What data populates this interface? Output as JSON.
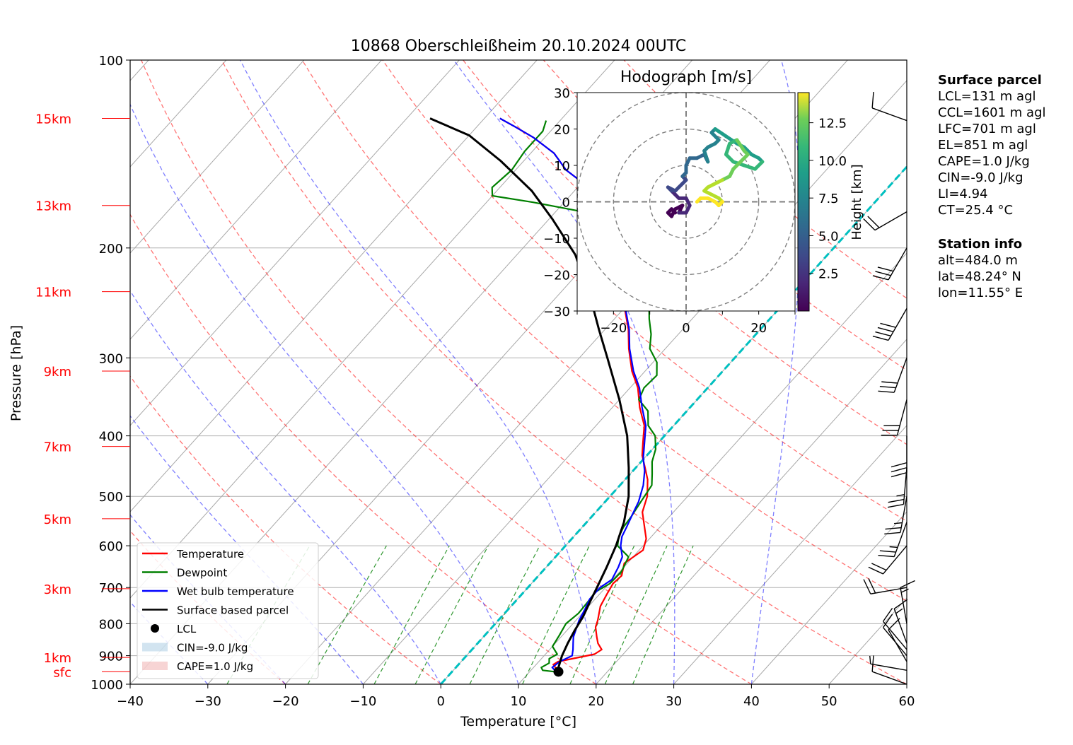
{
  "title": "10868 Oberschleißheim 20.10.2024 00UTC",
  "chart_data": {
    "type": "skew-t log-p sounding",
    "xlabel": "Temperature [°C]",
    "ylabel": "Pressure [hPa]",
    "xlim": [
      -40,
      60
    ],
    "ylim": [
      1000,
      100
    ],
    "y_scale": "log",
    "x_ticks": [
      -40,
      -30,
      -20,
      -10,
      0,
      10,
      20,
      30,
      40,
      50,
      60
    ],
    "x_tick_labels": [
      "−40",
      "−30",
      "−20",
      "−10",
      "0",
      "10",
      "20",
      "30",
      "40",
      "50",
      "60"
    ],
    "y_ticks": [
      1000,
      900,
      800,
      700,
      600,
      500,
      400,
      300,
      200,
      100
    ],
    "grid": true,
    "height_labels": [
      {
        "label": "sfc",
        "pressure": 955
      },
      {
        "label": "1km",
        "pressure": 906
      },
      {
        "label": "3km",
        "pressure": 703
      },
      {
        "label": "5km",
        "pressure": 543
      },
      {
        "label": "7km",
        "pressure": 416
      },
      {
        "label": "9km",
        "pressure": 315
      },
      {
        "label": "11km",
        "pressure": 235
      },
      {
        "label": "13km",
        "pressure": 171
      },
      {
        "label": "15km",
        "pressure": 124
      }
    ],
    "series": [
      {
        "name": "Temperature",
        "color": "#ff0000",
        "points": [
          [
            13.7,
            955
          ],
          [
            12.2,
            930
          ],
          [
            12.5,
            920
          ],
          [
            16.3,
            895
          ],
          [
            16.7,
            880
          ],
          [
            15.5,
            860
          ],
          [
            14.6,
            840
          ],
          [
            13.3,
            810
          ],
          [
            12.8,
            790
          ],
          [
            11.5,
            750
          ],
          [
            10.9,
            715
          ],
          [
            10.5,
            690
          ],
          [
            10.7,
            670
          ],
          [
            9.6,
            640
          ],
          [
            10.5,
            610
          ],
          [
            9.6,
            585
          ],
          [
            8.0,
            560
          ],
          [
            6.0,
            530
          ],
          [
            4.8,
            500
          ],
          [
            2.9,
            470
          ],
          [
            1.2,
            450
          ],
          [
            -0.6,
            430
          ],
          [
            -2.0,
            410
          ],
          [
            -3.8,
            385
          ],
          [
            -6.5,
            360
          ],
          [
            -9.0,
            335
          ],
          [
            -11.7,
            315
          ],
          [
            -14.7,
            290
          ],
          [
            -17.0,
            270
          ],
          [
            -19.6,
            252
          ],
          [
            -22.8,
            235
          ],
          [
            -25.6,
            222
          ],
          [
            -28.5,
            210
          ],
          [
            -31.2,
            198
          ],
          [
            -33.5,
            187
          ],
          [
            -34.5,
            180
          ],
          [
            -36.5,
            168
          ],
          [
            -39.5,
            158
          ],
          [
            -43.5,
            150
          ],
          [
            -47.0,
            141
          ],
          [
            -51.5,
            133
          ],
          [
            -55.0,
            128
          ],
          [
            -58.0,
            124
          ]
        ]
      },
      {
        "name": "Dewpoint",
        "color": "#008000",
        "points": [
          [
            13.2,
            955
          ],
          [
            11.5,
            950
          ],
          [
            11.0,
            940
          ],
          [
            11.5,
            925
          ],
          [
            11.0,
            910
          ],
          [
            11.5,
            895
          ],
          [
            10.0,
            870
          ],
          [
            9.6,
            835
          ],
          [
            9.1,
            800
          ],
          [
            9.5,
            770
          ],
          [
            9.4,
            740
          ],
          [
            9.2,
            712
          ],
          [
            10.1,
            690
          ],
          [
            10.2,
            660
          ],
          [
            9.4,
            625
          ],
          [
            6.7,
            600
          ],
          [
            5.8,
            580
          ],
          [
            5.3,
            560
          ],
          [
            5.1,
            540
          ],
          [
            4.6,
            510
          ],
          [
            4.1,
            480
          ],
          [
            2.8,
            460
          ],
          [
            1.4,
            440
          ],
          [
            0.4,
            420
          ],
          [
            -1.2,
            400
          ],
          [
            -3.3,
            385
          ],
          [
            -5.0,
            365
          ],
          [
            -7.5,
            350
          ],
          [
            -8.2,
            335
          ],
          [
            -8.0,
            320
          ],
          [
            -9.5,
            305
          ],
          [
            -12.0,
            290
          ],
          [
            -13.5,
            275
          ],
          [
            -15.5,
            260
          ],
          [
            -17.4,
            245
          ],
          [
            -19.7,
            232
          ],
          [
            -23.0,
            220
          ],
          [
            -25.7,
            208
          ],
          [
            -26.8,
            198
          ],
          [
            -28.5,
            190
          ],
          [
            -32.5,
            182
          ],
          [
            -36.5,
            175
          ],
          [
            -44.0,
            169
          ],
          [
            -50.0,
            165
          ],
          [
            -51.0,
            160
          ],
          [
            -50.5,
            150
          ],
          [
            -51.0,
            140
          ],
          [
            -51.0,
            130
          ],
          [
            -51.8,
            125
          ]
        ]
      },
      {
        "name": "Wet bulb temperature",
        "color": "#0000ff",
        "points": [
          [
            13.4,
            955
          ],
          [
            12.4,
            940
          ],
          [
            12.7,
            920
          ],
          [
            13.6,
            900
          ],
          [
            13.0,
            880
          ],
          [
            12.3,
            860
          ],
          [
            11.6,
            840
          ],
          [
            11.0,
            815
          ],
          [
            10.4,
            790
          ],
          [
            9.9,
            760
          ],
          [
            9.3,
            730
          ],
          [
            9.3,
            700
          ],
          [
            9.9,
            680
          ],
          [
            9.3,
            650
          ],
          [
            8.6,
            625
          ],
          [
            7.1,
            600
          ],
          [
            6.2,
            580
          ],
          [
            5.7,
            560
          ],
          [
            5.0,
            535
          ],
          [
            4.3,
            510
          ],
          [
            3.0,
            480
          ],
          [
            1.5,
            455
          ],
          [
            -0.1,
            435
          ],
          [
            -1.8,
            410
          ],
          [
            -3.6,
            385
          ],
          [
            -6.2,
            360
          ],
          [
            -8.8,
            335
          ],
          [
            -11.5,
            315
          ],
          [
            -14.6,
            290
          ],
          [
            -16.9,
            270
          ],
          [
            -19.5,
            252
          ],
          [
            -22.8,
            235
          ],
          [
            -25.6,
            222
          ],
          [
            -28.5,
            210
          ],
          [
            -31.2,
            198
          ],
          [
            -33.5,
            187
          ],
          [
            -34.5,
            180
          ],
          [
            -36.5,
            168
          ],
          [
            -39.5,
            158
          ],
          [
            -43.5,
            150
          ],
          [
            -47.0,
            141
          ],
          [
            -51.5,
            133
          ],
          [
            -55.0,
            128
          ],
          [
            -58.0,
            124
          ]
        ]
      },
      {
        "name": "Surface based parcel",
        "color": "#000000",
        "points": [
          [
            13.7,
            955
          ],
          [
            13.2,
            940
          ],
          [
            12.3,
            900
          ],
          [
            11.6,
            860
          ],
          [
            11.0,
            820
          ],
          [
            10.5,
            780
          ],
          [
            9.7,
            740
          ],
          [
            8.9,
            700
          ],
          [
            7.8,
            650
          ],
          [
            6.5,
            600
          ],
          [
            4.8,
            550
          ],
          [
            2.4,
            500
          ],
          [
            -0.9,
            450
          ],
          [
            -4.8,
            400
          ],
          [
            -10.0,
            350
          ],
          [
            -16.4,
            300
          ],
          [
            -20.8,
            270
          ],
          [
            -25.6,
            240
          ],
          [
            -32.5,
            205
          ],
          [
            -39.5,
            180
          ],
          [
            -45.5,
            162
          ],
          [
            -53.0,
            145
          ],
          [
            -60.0,
            132
          ],
          [
            -67.0,
            124
          ]
        ]
      }
    ],
    "lcl": {
      "label": "LCL",
      "temperature": 13.7,
      "pressure": 955
    },
    "freezing_level_line": {
      "color": "#00c0c0",
      "isotherm": 0
    },
    "legend": {
      "position": "lower-left",
      "entries": [
        {
          "label": "Temperature",
          "kind": "line",
          "color": "#ff0000"
        },
        {
          "label": "Dewpoint",
          "kind": "line",
          "color": "#008000"
        },
        {
          "label": "Wet bulb temperature",
          "kind": "line",
          "color": "#0000ff"
        },
        {
          "label": "Surface based parcel",
          "kind": "line",
          "color": "#000000"
        },
        {
          "label": "LCL",
          "kind": "dot",
          "color": "#000000"
        },
        {
          "label": "CIN=-9.0 J/kg",
          "kind": "patch",
          "color": "#1f77b4"
        },
        {
          "label": "CAPE=1.0 J/kg",
          "kind": "patch",
          "color": "#d62728"
        }
      ]
    },
    "wind_barbs": [
      {
        "pressure": 1000,
        "speed_kt": 10,
        "direction_deg": 290
      },
      {
        "pressure": 950,
        "speed_kt": 5,
        "direction_deg": 280
      },
      {
        "pressure": 920,
        "speed_kt": 10,
        "direction_deg": 330
      },
      {
        "pressure": 900,
        "speed_kt": 10,
        "direction_deg": 320
      },
      {
        "pressure": 880,
        "speed_kt": 10,
        "direction_deg": 320
      },
      {
        "pressure": 860,
        "speed_kt": 15,
        "direction_deg": 340
      },
      {
        "pressure": 800,
        "speed_kt": 15,
        "direction_deg": 350
      },
      {
        "pressure": 700,
        "speed_kt": 20,
        "direction_deg": 260
      },
      {
        "pressure": 600,
        "speed_kt": 20,
        "direction_deg": 220
      },
      {
        "pressure": 550,
        "speed_kt": 25,
        "direction_deg": 200
      },
      {
        "pressure": 500,
        "speed_kt": 25,
        "direction_deg": 190
      },
      {
        "pressure": 450,
        "speed_kt": 25,
        "direction_deg": 185
      },
      {
        "pressure": 400,
        "speed_kt": 30,
        "direction_deg": 180
      },
      {
        "pressure": 350,
        "speed_kt": 30,
        "direction_deg": 195
      },
      {
        "pressure": 300,
        "speed_kt": 30,
        "direction_deg": 200
      },
      {
        "pressure": 250,
        "speed_kt": 40,
        "direction_deg": 210
      },
      {
        "pressure": 200,
        "speed_kt": 30,
        "direction_deg": 210
      },
      {
        "pressure": 175,
        "speed_kt": 20,
        "direction_deg": 240
      },
      {
        "pressure": 125,
        "speed_kt": 10,
        "direction_deg": 290
      }
    ],
    "hodograph": {
      "title": "Hodograph [m/s]",
      "xlim": [
        -30,
        30
      ],
      "ylim": [
        -30,
        30
      ],
      "ticks": [
        -30,
        -20,
        -10,
        0,
        10,
        20,
        30
      ],
      "x_tick_labels": [
        "−20",
        "0",
        "20"
      ],
      "y_tick_labels": [
        "−30",
        "−20",
        "−10",
        "0",
        "10",
        "20",
        "30"
      ],
      "range_rings": [
        10,
        20,
        30
      ],
      "colorbar": {
        "label": "Height [km]",
        "ticks": [
          "2.5",
          "5.0",
          "7.5",
          "10.0",
          "12.5"
        ],
        "range_km": [
          0,
          14.5
        ],
        "colormap": "viridis"
      },
      "trace_uv": [
        [
          -3,
          -3
        ],
        [
          -4,
          -2
        ],
        [
          -5,
          -3
        ],
        [
          -4,
          -4
        ],
        [
          -3,
          -2
        ],
        [
          -1,
          -1
        ],
        [
          -2,
          -3
        ],
        [
          0,
          -3
        ],
        [
          1,
          -1
        ],
        [
          0,
          1
        ],
        [
          -2,
          1
        ],
        [
          -3,
          2
        ],
        [
          -4,
          3
        ],
        [
          -5,
          4
        ],
        [
          -3,
          3
        ],
        [
          -2,
          4
        ],
        [
          -1,
          5
        ],
        [
          0,
          6
        ],
        [
          -1,
          7
        ],
        [
          0,
          8
        ],
        [
          0,
          10
        ],
        [
          1,
          12
        ],
        [
          3,
          12
        ],
        [
          5,
          13
        ],
        [
          6,
          11
        ],
        [
          5,
          14
        ],
        [
          6,
          15
        ],
        [
          8,
          16
        ],
        [
          9,
          17
        ],
        [
          7,
          19
        ],
        [
          8,
          20
        ],
        [
          11,
          18
        ],
        [
          14,
          16
        ],
        [
          16,
          15
        ],
        [
          18,
          13
        ],
        [
          20,
          12
        ],
        [
          21,
          11
        ],
        [
          19,
          9
        ],
        [
          16,
          10
        ],
        [
          13,
          11
        ],
        [
          11,
          13
        ],
        [
          12,
          16
        ],
        [
          14,
          17
        ],
        [
          16,
          14
        ],
        [
          17,
          13
        ],
        [
          15,
          11
        ],
        [
          13,
          9
        ],
        [
          12,
          7
        ],
        [
          10,
          6
        ],
        [
          8,
          5
        ],
        [
          6,
          4
        ],
        [
          5,
          3
        ],
        [
          7,
          2
        ],
        [
          9,
          1
        ],
        [
          10,
          0
        ],
        [
          9,
          -1
        ],
        [
          8,
          0
        ],
        [
          6,
          1
        ],
        [
          4,
          1
        ],
        [
          3,
          0
        ]
      ]
    },
    "info": {
      "surface_parcel": {
        "heading": "Surface parcel",
        "lines": [
          "LCL=131 m agl",
          "CCL=1601 m agl",
          "LFC=701 m agl",
          "EL=851 m agl",
          "CAPE=1.0 J/kg",
          "CIN=-9.0 J/kg",
          "LI=4.94",
          "CT=25.4 °C"
        ]
      },
      "station": {
        "heading": "Station info",
        "lines": [
          "alt=484.0 m",
          "lat=48.24° N",
          "lon=11.55° E"
        ]
      }
    }
  }
}
